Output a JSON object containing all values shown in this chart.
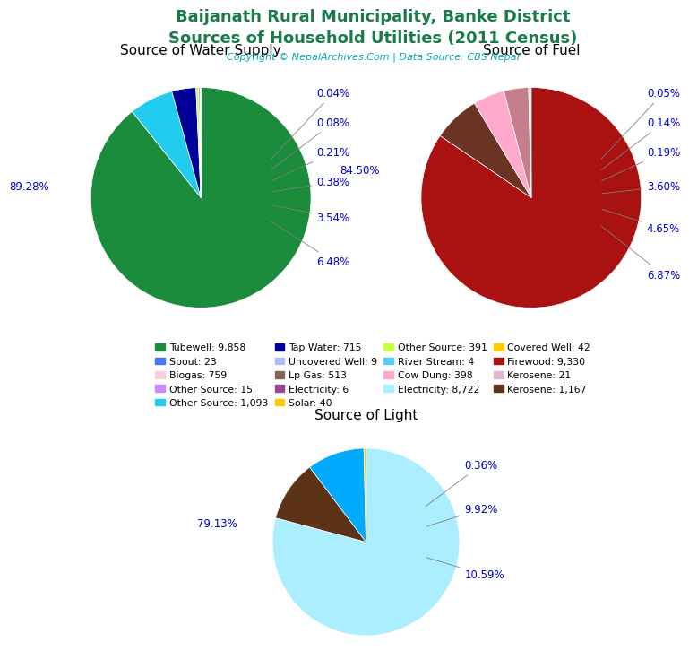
{
  "title_line1": "Baijanath Rural Municipality, Banke District",
  "title_line2": "Sources of Household Utilities (2011 Census)",
  "title_color": "#1a7a4a",
  "copyright_text": "Copyright © NepalArchives.Com | Data Source: CBS Nepal",
  "copyright_color": "#00aaaa",
  "water_title": "Source of Water Supply",
  "water_sizes": [
    89.28,
    6.48,
    3.54,
    0.38,
    0.21,
    0.08,
    0.04
  ],
  "water_colors": [
    "#1a8c3c",
    "#22ccee",
    "#000099",
    "#ccff44",
    "#cc88ff",
    "#aabbff",
    "#4477ff"
  ],
  "water_pct_right": [
    "0.04%",
    "0.08%",
    "0.21%",
    "0.38%",
    "3.54%",
    "6.48%"
  ],
  "fuel_title": "Source of Fuel",
  "fuel_sizes": [
    84.5,
    6.87,
    4.65,
    3.6,
    0.19,
    0.14,
    0.05
  ],
  "fuel_colors": [
    "#aa1111",
    "#6b3322",
    "#ffaacc",
    "#c47f8a",
    "#ddbbcc",
    "#ffccdd",
    "#0000cc"
  ],
  "fuel_pct_right": [
    "0.05%",
    "0.14%",
    "0.19%",
    "3.60%",
    "4.65%",
    "6.87%"
  ],
  "light_title": "Source of Light",
  "light_sizes": [
    79.13,
    10.59,
    9.92,
    0.36
  ],
  "light_colors": [
    "#aaeeff",
    "#5c3317",
    "#00aaff",
    "#ffcc00"
  ],
  "legend_items": [
    [
      "Tubewell: 9,858",
      "#1a8c3c"
    ],
    [
      "Spout: 23",
      "#4477ff"
    ],
    [
      "Biogas: 759",
      "#ffccdd"
    ],
    [
      "Other Source: 15",
      "#cc88ff"
    ],
    [
      "Other Source: 1,093",
      "#22ccee"
    ],
    [
      "Tap Water: 715",
      "#000099"
    ],
    [
      "Uncovered Well: 9",
      "#aabbff"
    ],
    [
      "Lp Gas: 513",
      "#886655"
    ],
    [
      "Electricity: 6",
      "#994499"
    ],
    [
      "Solar: 40",
      "#ffcc00"
    ],
    [
      "Other Source: 391",
      "#ccff44"
    ],
    [
      "River Stream: 4",
      "#55ccff"
    ],
    [
      "Cow Dung: 398",
      "#ffaacc"
    ],
    [
      "Electricity: 8,722",
      "#aaeeff"
    ],
    [
      "Covered Well: 42",
      "#ffcc00"
    ],
    [
      "Firewood: 9,330",
      "#aa1111"
    ],
    [
      "Kerosene: 21",
      "#ddbbcc"
    ],
    [
      "Kerosene: 1,167",
      "#5c3317"
    ]
  ],
  "label_color": "#0000cc",
  "label_fontsize": 8.5
}
